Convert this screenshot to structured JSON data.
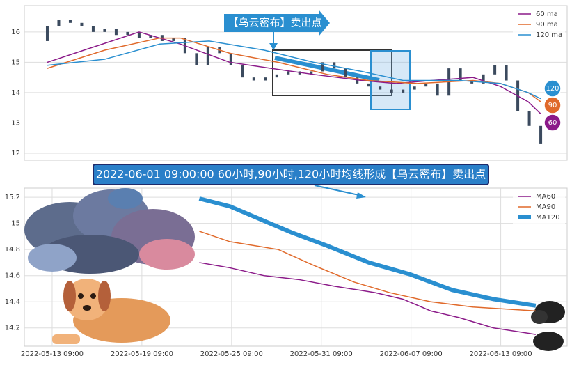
{
  "chart_data": [
    {
      "type": "candlestick",
      "annotation": "【乌云密布】卖出点",
      "open": [
        15.7,
        16.2,
        16.4,
        16.3,
        16.2,
        16.0,
        16.1,
        15.9,
        16.0,
        15.8,
        15.9,
        15.7,
        15.8,
        15.3,
        14.9,
        15.5,
        15.3,
        14.9,
        14.5,
        14.4,
        14.5,
        14.6,
        14.7,
        14.6,
        14.7,
        15.0,
        14.8,
        14.5,
        14.3,
        14.2,
        14.1,
        14.0,
        14.1,
        14.2,
        14.3,
        13.9,
        14.8,
        14.4,
        14.3,
        14.6,
        14.9,
        14.4,
        13.4,
        12.9
      ],
      "close": [
        16.2,
        16.4,
        16.3,
        16.2,
        16.0,
        16.1,
        15.9,
        16.0,
        15.8,
        15.9,
        15.7,
        15.8,
        15.3,
        14.9,
        15.5,
        15.3,
        14.9,
        14.5,
        14.4,
        14.5,
        14.6,
        14.7,
        14.6,
        14.7,
        15.0,
        14.8,
        14.5,
        14.3,
        14.2,
        14.1,
        14.0,
        14.1,
        14.2,
        14.3,
        13.9,
        14.8,
        14.4,
        14.3,
        14.6,
        14.9,
        14.4,
        13.4,
        12.9,
        12.3
      ],
      "candle_color": "#3b4a5e",
      "xlim": [
        -2,
        45.3
      ],
      "ylim": [
        11.77,
        16.87
      ],
      "yticks": [
        12,
        13,
        14,
        15,
        16
      ],
      "grid": true,
      "legend": "upper right",
      "series": [
        {
          "name": "60 ma",
          "badge": "60",
          "color": "#8b1a89",
          "width": 1.5,
          "x": [
            0,
            8,
            11.6,
            15.9,
            19.5,
            23.2,
            27.4,
            30.4,
            33.5,
            37.1,
            39.5,
            41.9,
            43
          ],
          "values": [
            15.0,
            16.0,
            15.6,
            15.0,
            14.8,
            14.6,
            14.4,
            14.3,
            14.4,
            14.5,
            14.2,
            13.7,
            13.3
          ]
        },
        {
          "name": "90 ma",
          "badge": "90",
          "color": "#e0692a",
          "width": 1.5,
          "x": [
            0,
            5,
            9.8,
            11.6,
            15.9,
            20.1,
            24.4,
            28,
            32.2,
            37.1,
            39.5,
            41.9,
            43
          ],
          "values": [
            14.8,
            15.4,
            15.8,
            15.8,
            15.3,
            15.0,
            14.6,
            14.4,
            14.3,
            14.4,
            14.3,
            14.0,
            13.7
          ]
        },
        {
          "name": "120 ma",
          "badge": "120",
          "color": "#2a8fd0",
          "width": 1.5,
          "x": [
            0,
            5,
            9.8,
            14.1,
            18.9,
            23.2,
            27.4,
            31,
            35.9,
            39.5,
            41.9,
            43
          ],
          "values": [
            14.9,
            15.1,
            15.6,
            15.7,
            15.4,
            15.0,
            14.7,
            14.4,
            14.4,
            14.3,
            14.0,
            13.8
          ]
        }
      ]
    },
    {
      "type": "line",
      "title": "2022-06-01 09:00:00 60小时,90小时,120小时均线形成【乌云密布】卖出点",
      "xlim": [
        -0.31,
        5.74
      ],
      "xticks": [
        {
          "value": 0,
          "label": "2022-05-13 09:00"
        },
        {
          "value": 1,
          "label": "2022-05-19 09:00"
        },
        {
          "value": 2,
          "label": "2022-05-25 09:00"
        },
        {
          "value": 3,
          "label": "2022-05-31 09:00"
        },
        {
          "value": 4,
          "label": "2022-06-07 09:00"
        },
        {
          "value": 5,
          "label": "2022-06-13 09:00"
        }
      ],
      "ylim": [
        14.06,
        15.27
      ],
      "yticks": [
        14.2,
        14.4,
        14.6,
        14.8,
        15.0,
        15.2
      ],
      "grid": true,
      "legend": "upper right",
      "series": [
        {
          "name": "MA60",
          "color": "#8b1a89",
          "width": 1.5,
          "x": [
            1.64,
            1.98,
            2.36,
            2.75,
            3.14,
            3.6,
            3.91,
            4.22,
            4.53,
            4.92,
            5.39
          ],
          "values": [
            14.7,
            14.66,
            14.6,
            14.57,
            14.52,
            14.47,
            14.42,
            14.33,
            14.28,
            14.2,
            14.15
          ]
        },
        {
          "name": "MA90",
          "color": "#e0692a",
          "width": 1.5,
          "x": [
            1.64,
            1.98,
            2.52,
            2.91,
            3.37,
            3.76,
            4.22,
            4.69,
            5.39
          ],
          "values": [
            14.94,
            14.86,
            14.8,
            14.68,
            14.55,
            14.47,
            14.4,
            14.36,
            14.33
          ]
        },
        {
          "name": "MA120",
          "color": "#2a8fd0",
          "width": 6,
          "x": [
            1.64,
            1.98,
            2.29,
            2.67,
            3.06,
            3.53,
            3.99,
            4.46,
            4.92,
            5.39
          ],
          "values": [
            15.19,
            15.13,
            15.04,
            14.93,
            14.83,
            14.7,
            14.61,
            14.49,
            14.42,
            14.37
          ]
        }
      ]
    }
  ]
}
